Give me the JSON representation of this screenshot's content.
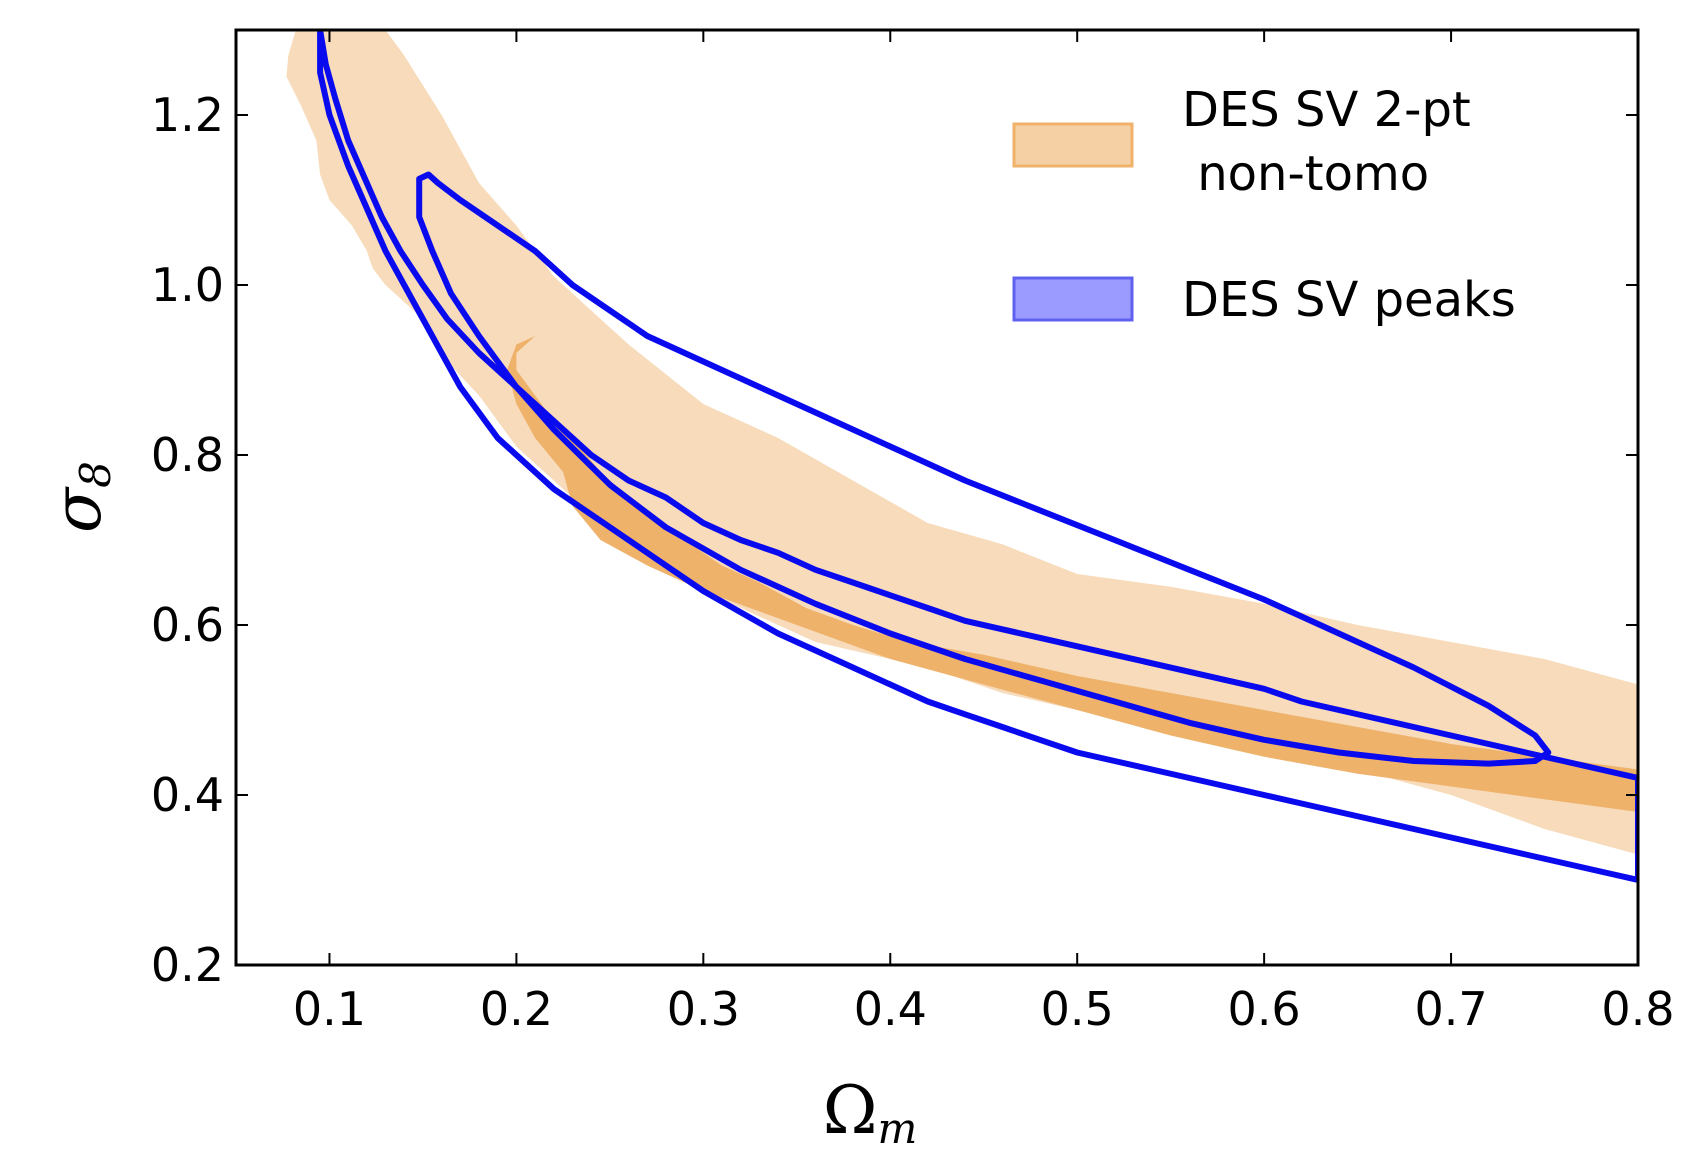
{
  "chart_data": {
    "type": "contour",
    "xlabel": "Ω",
    "xlabel_sub": "m",
    "ylabel": "σ",
    "ylabel_sub": "8",
    "xlim": [
      0.05,
      0.8
    ],
    "ylim": [
      0.2,
      1.3
    ],
    "xticks": [
      "0.1",
      "0.2",
      "0.3",
      "0.4",
      "0.5",
      "0.6",
      "0.7",
      "0.8"
    ],
    "yticks": [
      "0.2",
      "0.4",
      "0.6",
      "0.8",
      "1.0",
      "1.2"
    ],
    "legend_position": "top-right",
    "legend": [
      {
        "line1": "DES SV 2-pt",
        "line2": " non-tomo",
        "color": "#f0b169"
      },
      {
        "line1": "DES SV peaks",
        "line2": "",
        "color": "#9b9bff"
      }
    ],
    "series": [
      {
        "name": "DES SV 2-pt non-tomo",
        "kind": "filled",
        "colors": {
          "outer": "#f7dbba",
          "inner": "#eeb26b"
        },
        "outer_contour": [
          [
            0.082,
            1.3
          ],
          [
            0.078,
            1.27
          ],
          [
            0.077,
            1.245
          ],
          [
            0.085,
            1.21
          ],
          [
            0.093,
            1.17
          ],
          [
            0.095,
            1.13
          ],
          [
            0.1,
            1.1
          ],
          [
            0.112,
            1.07
          ],
          [
            0.12,
            1.04
          ],
          [
            0.123,
            1.02
          ],
          [
            0.13,
            1.0
          ],
          [
            0.15,
            0.96
          ],
          [
            0.163,
            0.91
          ],
          [
            0.18,
            0.87
          ],
          [
            0.2,
            0.81
          ],
          [
            0.22,
            0.77
          ],
          [
            0.24,
            0.73
          ],
          [
            0.26,
            0.7
          ],
          [
            0.28,
            0.67
          ],
          [
            0.3,
            0.64
          ],
          [
            0.32,
            0.62
          ],
          [
            0.34,
            0.6
          ],
          [
            0.36,
            0.58
          ],
          [
            0.38,
            0.57
          ],
          [
            0.4,
            0.56
          ],
          [
            0.42,
            0.55
          ],
          [
            0.44,
            0.535
          ],
          [
            0.46,
            0.52
          ],
          [
            0.5,
            0.5
          ],
          [
            0.55,
            0.475
          ],
          [
            0.6,
            0.45
          ],
          [
            0.65,
            0.43
          ],
          [
            0.7,
            0.4
          ],
          [
            0.75,
            0.36
          ],
          [
            0.8,
            0.33
          ],
          [
            0.8,
            0.53
          ],
          [
            0.75,
            0.56
          ],
          [
            0.7,
            0.58
          ],
          [
            0.65,
            0.6
          ],
          [
            0.6,
            0.625
          ],
          [
            0.55,
            0.645
          ],
          [
            0.5,
            0.66
          ],
          [
            0.46,
            0.695
          ],
          [
            0.42,
            0.72
          ],
          [
            0.38,
            0.77
          ],
          [
            0.34,
            0.82
          ],
          [
            0.3,
            0.86
          ],
          [
            0.26,
            0.93
          ],
          [
            0.22,
            1.01
          ],
          [
            0.2,
            1.07
          ],
          [
            0.18,
            1.12
          ],
          [
            0.16,
            1.2
          ],
          [
            0.14,
            1.27
          ],
          [
            0.13,
            1.3
          ]
        ],
        "inner_contour": [
          [
            0.21,
            0.94
          ],
          [
            0.2,
            0.92
          ],
          [
            0.2,
            0.9
          ],
          [
            0.21,
            0.87
          ],
          [
            0.22,
            0.84
          ],
          [
            0.23,
            0.82
          ],
          [
            0.245,
            0.78
          ],
          [
            0.265,
            0.74
          ],
          [
            0.29,
            0.7
          ],
          [
            0.31,
            0.67
          ],
          [
            0.33,
            0.65
          ],
          [
            0.355,
            0.62
          ],
          [
            0.38,
            0.6
          ],
          [
            0.41,
            0.58
          ],
          [
            0.45,
            0.565
          ],
          [
            0.5,
            0.54
          ],
          [
            0.55,
            0.52
          ],
          [
            0.6,
            0.5
          ],
          [
            0.65,
            0.48
          ],
          [
            0.7,
            0.46
          ],
          [
            0.75,
            0.445
          ],
          [
            0.8,
            0.43
          ],
          [
            0.8,
            0.38
          ],
          [
            0.75,
            0.395
          ],
          [
            0.7,
            0.41
          ],
          [
            0.65,
            0.425
          ],
          [
            0.6,
            0.445
          ],
          [
            0.55,
            0.47
          ],
          [
            0.5,
            0.5
          ],
          [
            0.45,
            0.53
          ],
          [
            0.4,
            0.56
          ],
          [
            0.35,
            0.6
          ],
          [
            0.3,
            0.64
          ],
          [
            0.27,
            0.67
          ],
          [
            0.245,
            0.7
          ],
          [
            0.23,
            0.74
          ],
          [
            0.225,
            0.78
          ],
          [
            0.21,
            0.82
          ],
          [
            0.2,
            0.86
          ],
          [
            0.195,
            0.9
          ],
          [
            0.2,
            0.93
          ]
        ]
      },
      {
        "name": "DES SV peaks",
        "kind": "line",
        "color": "#0a0aee",
        "outer_contour": [
          [
            0.095,
            1.3
          ],
          [
            0.098,
            1.26
          ],
          [
            0.103,
            1.22
          ],
          [
            0.11,
            1.17
          ],
          [
            0.118,
            1.13
          ],
          [
            0.128,
            1.08
          ],
          [
            0.138,
            1.04
          ],
          [
            0.15,
            1.0
          ],
          [
            0.163,
            0.96
          ],
          [
            0.18,
            0.92
          ],
          [
            0.2,
            0.88
          ],
          [
            0.22,
            0.84
          ],
          [
            0.24,
            0.8
          ],
          [
            0.26,
            0.77
          ],
          [
            0.28,
            0.75
          ],
          [
            0.3,
            0.72
          ],
          [
            0.32,
            0.7
          ],
          [
            0.34,
            0.685
          ],
          [
            0.36,
            0.665
          ],
          [
            0.38,
            0.65
          ],
          [
            0.4,
            0.635
          ],
          [
            0.42,
            0.62
          ],
          [
            0.44,
            0.605
          ],
          [
            0.46,
            0.595
          ],
          [
            0.48,
            0.585
          ],
          [
            0.5,
            0.575
          ],
          [
            0.52,
            0.565
          ],
          [
            0.54,
            0.555
          ],
          [
            0.56,
            0.545
          ],
          [
            0.58,
            0.535
          ],
          [
            0.6,
            0.525
          ],
          [
            0.62,
            0.51
          ],
          [
            0.64,
            0.5
          ],
          [
            0.66,
            0.49
          ],
          [
            0.68,
            0.48
          ],
          [
            0.7,
            0.47
          ],
          [
            0.72,
            0.46
          ],
          [
            0.74,
            0.45
          ],
          [
            0.76,
            0.44
          ],
          [
            0.78,
            0.43
          ],
          [
            0.8,
            0.42
          ],
          [
            0.8,
            0.3
          ],
          [
            0.78,
            0.31
          ],
          [
            0.76,
            0.32
          ],
          [
            0.74,
            0.33
          ],
          [
            0.72,
            0.34
          ],
          [
            0.7,
            0.35
          ],
          [
            0.68,
            0.36
          ],
          [
            0.66,
            0.37
          ],
          [
            0.64,
            0.38
          ],
          [
            0.62,
            0.39
          ],
          [
            0.6,
            0.4
          ],
          [
            0.58,
            0.41
          ],
          [
            0.56,
            0.42
          ],
          [
            0.54,
            0.43
          ],
          [
            0.52,
            0.44
          ],
          [
            0.5,
            0.45
          ],
          [
            0.48,
            0.465
          ],
          [
            0.46,
            0.48
          ],
          [
            0.44,
            0.495
          ],
          [
            0.42,
            0.51
          ],
          [
            0.4,
            0.53
          ],
          [
            0.38,
            0.55
          ],
          [
            0.36,
            0.57
          ],
          [
            0.34,
            0.59
          ],
          [
            0.32,
            0.615
          ],
          [
            0.3,
            0.64
          ],
          [
            0.28,
            0.67
          ],
          [
            0.26,
            0.7
          ],
          [
            0.24,
            0.73
          ],
          [
            0.22,
            0.76
          ],
          [
            0.2,
            0.8
          ],
          [
            0.19,
            0.82
          ],
          [
            0.18,
            0.85
          ],
          [
            0.17,
            0.88
          ],
          [
            0.16,
            0.92
          ],
          [
            0.15,
            0.96
          ],
          [
            0.14,
            1.0
          ],
          [
            0.13,
            1.04
          ],
          [
            0.12,
            1.09
          ],
          [
            0.11,
            1.14
          ],
          [
            0.1,
            1.2
          ],
          [
            0.095,
            1.25
          ]
        ],
        "inner_contour": [
          [
            0.148,
            1.125
          ],
          [
            0.153,
            1.13
          ],
          [
            0.158,
            1.12
          ],
          [
            0.17,
            1.1
          ],
          [
            0.19,
            1.07
          ],
          [
            0.21,
            1.04
          ],
          [
            0.23,
            1.0
          ],
          [
            0.25,
            0.97
          ],
          [
            0.27,
            0.94
          ],
          [
            0.3,
            0.91
          ],
          [
            0.33,
            0.88
          ],
          [
            0.36,
            0.85
          ],
          [
            0.4,
            0.81
          ],
          [
            0.44,
            0.77
          ],
          [
            0.48,
            0.735
          ],
          [
            0.52,
            0.7
          ],
          [
            0.56,
            0.665
          ],
          [
            0.6,
            0.63
          ],
          [
            0.64,
            0.59
          ],
          [
            0.68,
            0.55
          ],
          [
            0.72,
            0.505
          ],
          [
            0.745,
            0.47
          ],
          [
            0.752,
            0.45
          ],
          [
            0.745,
            0.44
          ],
          [
            0.72,
            0.437
          ],
          [
            0.68,
            0.44
          ],
          [
            0.64,
            0.45
          ],
          [
            0.6,
            0.465
          ],
          [
            0.56,
            0.485
          ],
          [
            0.52,
            0.51
          ],
          [
            0.48,
            0.535
          ],
          [
            0.44,
            0.56
          ],
          [
            0.4,
            0.59
          ],
          [
            0.36,
            0.625
          ],
          [
            0.32,
            0.665
          ],
          [
            0.28,
            0.715
          ],
          [
            0.25,
            0.765
          ],
          [
            0.22,
            0.83
          ],
          [
            0.2,
            0.88
          ],
          [
            0.18,
            0.94
          ],
          [
            0.165,
            0.99
          ],
          [
            0.155,
            1.04
          ],
          [
            0.148,
            1.08
          ]
        ]
      }
    ]
  }
}
